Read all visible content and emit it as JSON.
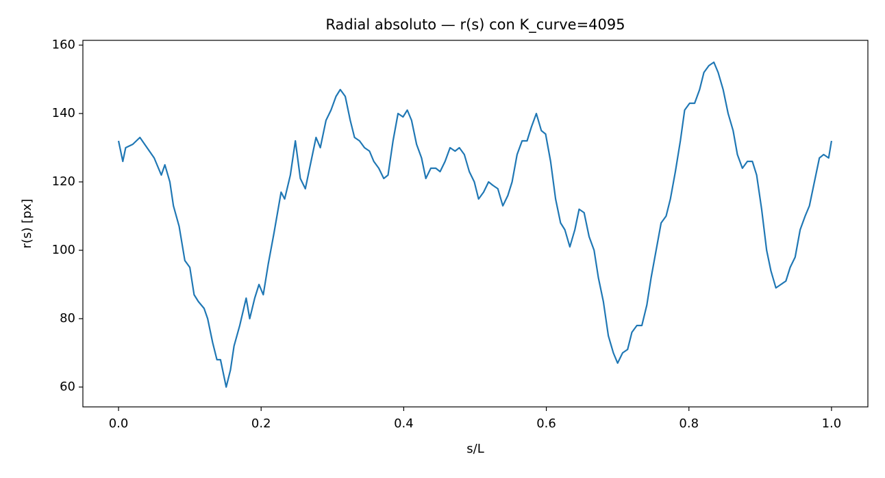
{
  "chart_data": {
    "type": "line",
    "title": "Radial absoluto — r(s) con K_curve=4095",
    "xlabel": "s/L",
    "ylabel": "r(s) [px]",
    "series": [
      {
        "color": "#1f77b4",
        "x": [
          0,
          0.006,
          0.01,
          0.02,
          0.03,
          0.04,
          0.05,
          0.06,
          0.065,
          0.072,
          0.077,
          0.085,
          0.093,
          0.1,
          0.106,
          0.112,
          0.12,
          0.125,
          0.132,
          0.138,
          0.143,
          0.151,
          0.157,
          0.162,
          0.17,
          0.179,
          0.184,
          0.191,
          0.197,
          0.203,
          0.21,
          0.218,
          0.228,
          0.233,
          0.241,
          0.248,
          0.255,
          0.262,
          0.269,
          0.277,
          0.283,
          0.291,
          0.298,
          0.305,
          0.311,
          0.318,
          0.325,
          0.331,
          0.338,
          0.345,
          0.352,
          0.358,
          0.365,
          0.372,
          0.378,
          0.385,
          0.392,
          0.399,
          0.405,
          0.411,
          0.418,
          0.425,
          0.431,
          0.438,
          0.445,
          0.451,
          0.458,
          0.465,
          0.472,
          0.478,
          0.485,
          0.492,
          0.499,
          0.505,
          0.512,
          0.519,
          0.525,
          0.532,
          0.539,
          0.546,
          0.552,
          0.559,
          0.566,
          0.573,
          0.579,
          0.586,
          0.593,
          0.599,
          0.606,
          0.613,
          0.62,
          0.626,
          0.633,
          0.64,
          0.646,
          0.653,
          0.66,
          0.667,
          0.673,
          0.68,
          0.687,
          0.694,
          0.7,
          0.707,
          0.714,
          0.72,
          0.727,
          0.734,
          0.741,
          0.747,
          0.754,
          0.761,
          0.768,
          0.774,
          0.781,
          0.788,
          0.794,
          0.801,
          0.808,
          0.815,
          0.821,
          0.828,
          0.835,
          0.841,
          0.848,
          0.855,
          0.862,
          0.868,
          0.875,
          0.882,
          0.889,
          0.895,
          0.902,
          0.909,
          0.915,
          0.922,
          0.929,
          0.936,
          0.942,
          0.949,
          0.956,
          0.963,
          0.969,
          0.976,
          0.983,
          0.989,
          0.996,
          1.0
        ],
        "values": [
          132,
          126,
          130,
          131,
          133,
          130,
          127,
          122,
          125,
          120,
          113,
          107,
          97,
          95,
          87,
          85,
          83,
          80,
          73,
          68,
          68,
          60,
          65,
          72,
          78,
          86,
          80,
          86,
          90,
          87,
          96,
          105,
          117,
          115,
          122,
          132,
          121,
          118,
          125,
          133,
          130,
          138,
          141,
          145,
          147,
          145,
          138,
          133,
          132,
          130,
          129,
          126,
          124,
          121,
          122,
          132,
          140,
          139,
          141,
          138,
          131,
          127,
          121,
          124,
          124,
          123,
          126,
          130,
          129,
          130,
          128,
          123,
          120,
          115,
          117,
          120,
          119,
          118,
          113,
          116,
          120,
          128,
          132,
          132,
          136,
          140,
          135,
          134,
          126,
          115,
          108,
          106,
          101,
          106,
          112,
          111,
          104,
          100,
          92,
          85,
          75,
          70,
          67,
          70,
          71,
          76,
          78,
          78,
          84,
          92,
          100,
          108,
          110,
          115,
          123,
          132,
          141,
          143,
          143,
          147,
          152,
          154,
          155,
          152,
          147,
          140,
          135,
          128,
          124,
          126,
          126,
          122,
          112,
          100,
          94,
          89,
          90,
          91,
          95,
          98,
          106,
          110,
          113,
          120,
          127,
          128,
          127,
          132
        ]
      }
    ],
    "xlim": [
      -0.05,
      1.051
    ],
    "xticks": [
      {
        "value": 0,
        "label": "0.0"
      },
      0.2,
      0.4,
      0.6,
      0.8,
      {
        "value": 1,
        "label": "1.0"
      }
    ],
    "ylim": [
      54.2,
      161.4
    ],
    "yticks": [
      60,
      80,
      100,
      120,
      140,
      160
    ],
    "grid": false
  }
}
